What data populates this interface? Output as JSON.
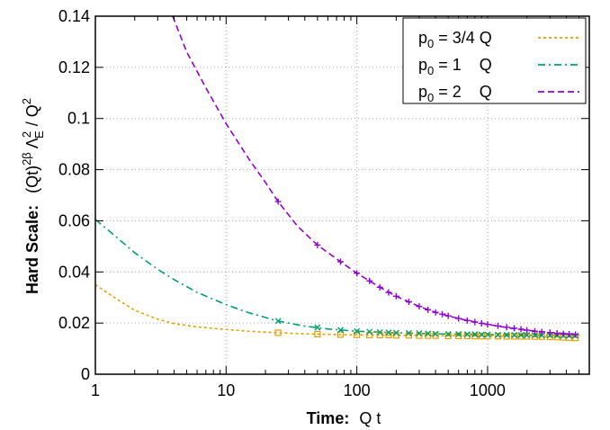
{
  "chart_data": {
    "type": "line",
    "xscale": "log",
    "xlim": [
      1,
      6000
    ],
    "ylim": [
      0,
      0.14
    ],
    "grid": true,
    "legend_position": "top-right",
    "xlabel": "Time:  Q t",
    "xlabel_parts": {
      "bold": "Time:",
      "plain": "Q t"
    },
    "ylabel_parts": {
      "bold": "Hard Scale:",
      "plain": "(Qt)^{2β} Λ_E^2 / Q^2"
    },
    "x_ticks": [
      {
        "value": 1,
        "label": "1"
      },
      {
        "value": 10,
        "label": "10"
      },
      {
        "value": 100,
        "label": "100"
      },
      {
        "value": 1000,
        "label": "1000"
      }
    ],
    "y_ticks": [
      {
        "value": 0,
        "label": "0"
      },
      {
        "value": 0.02,
        "label": "0.02"
      },
      {
        "value": 0.04,
        "label": "0.04"
      },
      {
        "value": 0.06,
        "label": "0.06"
      },
      {
        "value": 0.08,
        "label": "0.08"
      },
      {
        "value": 0.1,
        "label": "0.1"
      },
      {
        "value": 0.12,
        "label": "0.12"
      },
      {
        "value": 0.14,
        "label": "0.14"
      }
    ],
    "series": [
      {
        "legend": {
          "base": "p",
          "sub": "0",
          "rest": " = 3/4 Q"
        },
        "color": "#e69f00",
        "dash": "3,3",
        "marker": "square",
        "fit_curve": [
          [
            1,
            0.035
          ],
          [
            1.5,
            0.029
          ],
          [
            2,
            0.025
          ],
          [
            3,
            0.0215
          ],
          [
            4,
            0.0198
          ],
          [
            6,
            0.0185
          ],
          [
            10,
            0.0175
          ],
          [
            15,
            0.0168
          ],
          [
            25,
            0.0162
          ],
          [
            40,
            0.0158
          ],
          [
            70,
            0.0155
          ],
          [
            100,
            0.0154
          ],
          [
            200,
            0.0152
          ],
          [
            400,
            0.0151
          ],
          [
            700,
            0.015
          ],
          [
            1000,
            0.0149
          ],
          [
            2000,
            0.0148
          ],
          [
            3000,
            0.0146
          ],
          [
            5000,
            0.0143
          ]
        ],
        "points": [
          [
            25,
            0.0162
          ],
          [
            50,
            0.0157
          ],
          [
            75,
            0.0155
          ],
          [
            100,
            0.0154
          ],
          [
            125,
            0.0153
          ],
          [
            150,
            0.0153
          ],
          [
            175,
            0.0153
          ],
          [
            200,
            0.0152
          ],
          [
            250,
            0.0152
          ],
          [
            300,
            0.0151
          ],
          [
            350,
            0.0151
          ],
          [
            400,
            0.0151
          ],
          [
            500,
            0.015
          ],
          [
            600,
            0.015
          ],
          [
            700,
            0.015
          ],
          [
            800,
            0.0149
          ],
          [
            900,
            0.0149
          ],
          [
            1000,
            0.0149
          ],
          [
            1200,
            0.0149
          ],
          [
            1400,
            0.0148
          ],
          [
            1600,
            0.0148
          ],
          [
            1800,
            0.0148
          ],
          [
            2000,
            0.0148
          ],
          [
            2300,
            0.0147
          ],
          [
            2600,
            0.0147
          ],
          [
            3000,
            0.0146
          ],
          [
            3400,
            0.0145
          ],
          [
            3800,
            0.0144
          ],
          [
            4200,
            0.0143
          ],
          [
            4700,
            0.0142
          ]
        ]
      },
      {
        "legend": {
          "base": "p",
          "sub": "0",
          "rest": " = 1    Q"
        },
        "color": "#009e73",
        "dash": "8,4,2,4",
        "marker": "x",
        "fit_curve": [
          [
            1,
            0.0605
          ],
          [
            1.5,
            0.053
          ],
          [
            2,
            0.0475
          ],
          [
            3,
            0.041
          ],
          [
            4,
            0.037
          ],
          [
            6,
            0.032
          ],
          [
            10,
            0.0272
          ],
          [
            15,
            0.024
          ],
          [
            25,
            0.0208
          ],
          [
            40,
            0.0188
          ],
          [
            60,
            0.0177
          ],
          [
            100,
            0.0168
          ],
          [
            200,
            0.0162
          ],
          [
            400,
            0.0158
          ],
          [
            1000,
            0.0155
          ],
          [
            2000,
            0.0153
          ],
          [
            3000,
            0.0152
          ],
          [
            5000,
            0.0151
          ]
        ],
        "points": [
          [
            25,
            0.0208
          ],
          [
            50,
            0.0183
          ],
          [
            75,
            0.0173
          ],
          [
            100,
            0.0168
          ],
          [
            125,
            0.0166
          ],
          [
            150,
            0.0164
          ],
          [
            175,
            0.0163
          ],
          [
            200,
            0.0162
          ],
          [
            250,
            0.0161
          ],
          [
            300,
            0.016
          ],
          [
            350,
            0.0159
          ],
          [
            400,
            0.0158
          ],
          [
            500,
            0.0157
          ],
          [
            600,
            0.0157
          ],
          [
            700,
            0.0156
          ],
          [
            800,
            0.0156
          ],
          [
            900,
            0.0155
          ],
          [
            1000,
            0.0155
          ],
          [
            1200,
            0.0154
          ],
          [
            1400,
            0.0154
          ],
          [
            1600,
            0.0153
          ],
          [
            1800,
            0.0153
          ],
          [
            2000,
            0.0153
          ],
          [
            2300,
            0.0153
          ],
          [
            2600,
            0.0152
          ],
          [
            3000,
            0.0152
          ],
          [
            3400,
            0.0152
          ],
          [
            3800,
            0.0151
          ],
          [
            4200,
            0.0151
          ],
          [
            4700,
            0.0151
          ]
        ]
      },
      {
        "legend": {
          "base": "p",
          "sub": "0",
          "rest": " = 2    Q"
        },
        "color": "#9400d3",
        "dash": "7,4",
        "marker": "plus",
        "fit_curve": [
          [
            3.9,
            0.14
          ],
          [
            5,
            0.126
          ],
          [
            7,
            0.112
          ],
          [
            10,
            0.098
          ],
          [
            15,
            0.084
          ],
          [
            20,
            0.075
          ],
          [
            25,
            0.0675
          ],
          [
            35,
            0.058
          ],
          [
            50,
            0.0505
          ],
          [
            75,
            0.044
          ],
          [
            100,
            0.0395
          ],
          [
            150,
            0.034
          ],
          [
            200,
            0.0305
          ],
          [
            300,
            0.0265
          ],
          [
            400,
            0.0242
          ],
          [
            500,
            0.0228
          ],
          [
            700,
            0.021
          ],
          [
            1000,
            0.0195
          ],
          [
            1500,
            0.018
          ],
          [
            2000,
            0.0172
          ],
          [
            3000,
            0.0163
          ],
          [
            5000,
            0.0155
          ]
        ],
        "points": [
          [
            25,
            0.0675
          ],
          [
            50,
            0.0505
          ],
          [
            75,
            0.044
          ],
          [
            100,
            0.0395
          ],
          [
            125,
            0.0365
          ],
          [
            150,
            0.034
          ],
          [
            175,
            0.032
          ],
          [
            200,
            0.0305
          ],
          [
            250,
            0.0283
          ],
          [
            300,
            0.0265
          ],
          [
            350,
            0.0252
          ],
          [
            400,
            0.0242
          ],
          [
            450,
            0.0235
          ],
          [
            500,
            0.0228
          ],
          [
            600,
            0.0218
          ],
          [
            700,
            0.021
          ],
          [
            800,
            0.0204
          ],
          [
            900,
            0.0199
          ],
          [
            1000,
            0.0195
          ],
          [
            1200,
            0.0189
          ],
          [
            1400,
            0.0184
          ],
          [
            1600,
            0.018
          ],
          [
            1800,
            0.0176
          ],
          [
            2000,
            0.0172
          ],
          [
            2300,
            0.0168
          ],
          [
            2600,
            0.0165
          ],
          [
            3000,
            0.0163
          ],
          [
            3400,
            0.016
          ],
          [
            3800,
            0.0158
          ],
          [
            4200,
            0.0157
          ],
          [
            4700,
            0.0155
          ]
        ]
      }
    ]
  }
}
